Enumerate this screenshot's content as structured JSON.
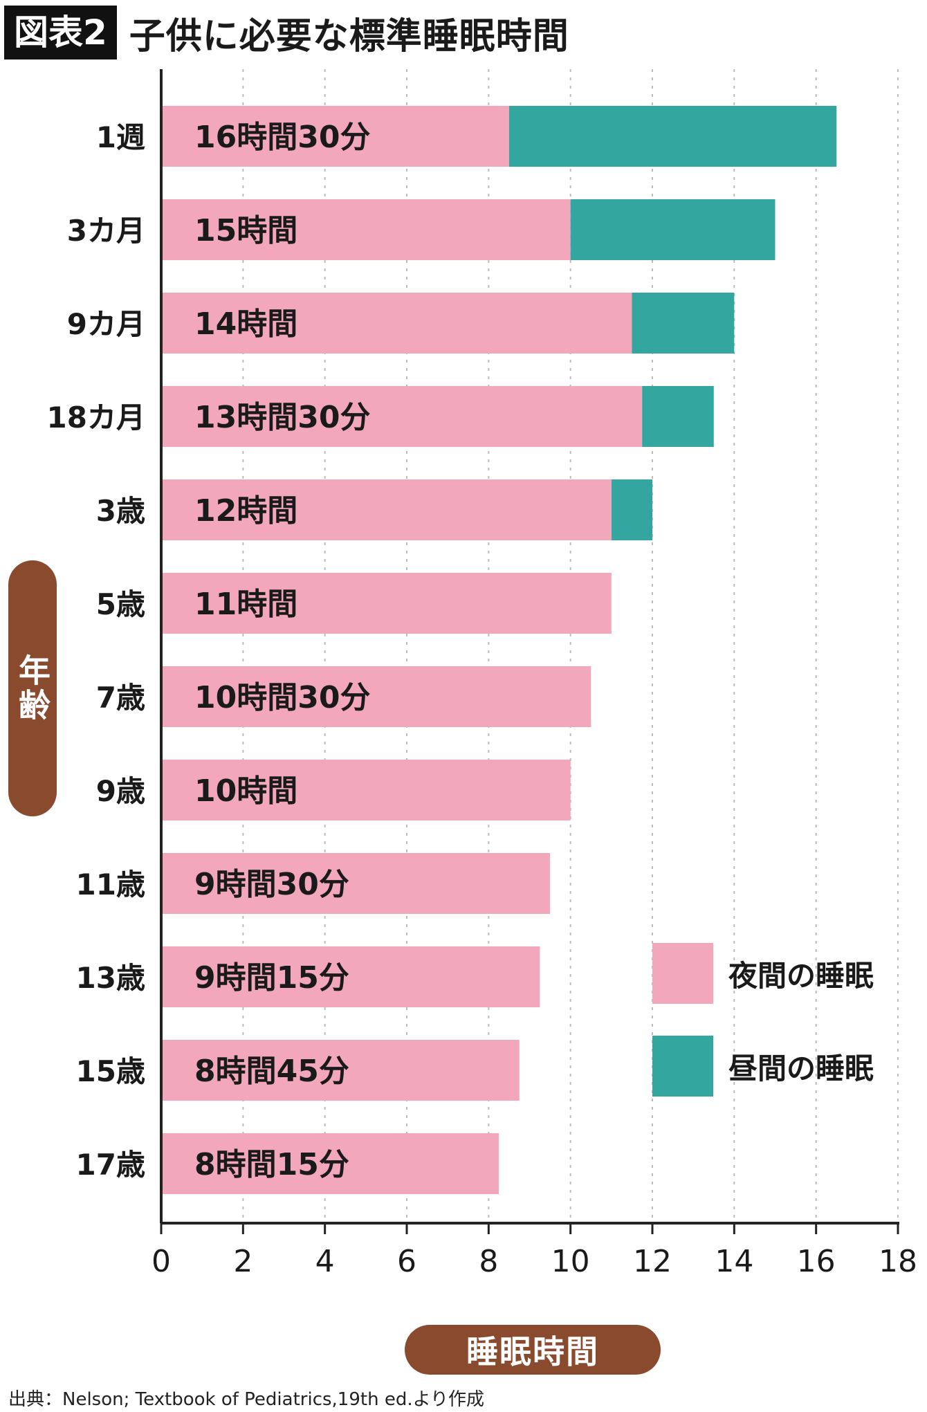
{
  "title": {
    "tag": "図表2",
    "text": "子供に必要な標準睡眠時間"
  },
  "source": "出典：Nelson; Textbook of Pediatrics,19th ed.より作成",
  "colors": {
    "night": "#f2a7bb",
    "day": "#34a6a0",
    "pill": "#8a4a2e",
    "axis": "#222222",
    "grid": "#bbbbbb"
  },
  "chart_data": {
    "type": "bar",
    "orientation": "horizontal",
    "stacked": true,
    "ylabel": "年齢",
    "xlabel": "睡眠時間",
    "xlim": [
      0,
      18
    ],
    "xticks": [
      "0",
      "2",
      "4",
      "6",
      "8",
      "10",
      "12",
      "14",
      "16",
      "18"
    ],
    "grid": "vertical-dashed",
    "legend_position": "right",
    "categories": [
      "1週",
      "3カ月",
      "9カ月",
      "18カ月",
      "3歳",
      "5歳",
      "7歳",
      "9歳",
      "11歳",
      "13歳",
      "15歳",
      "17歳"
    ],
    "series": [
      {
        "name": "夜間の睡眠",
        "color": "#f2a7bb",
        "values": [
          8.5,
          10,
          11.5,
          11.75,
          11,
          11,
          10.5,
          10,
          9.5,
          9.25,
          8.75,
          8.25
        ]
      },
      {
        "name": "昼間の睡眠",
        "color": "#34a6a0",
        "values": [
          8,
          5,
          2.5,
          1.75,
          1,
          0,
          0,
          0,
          0,
          0,
          0,
          0
        ]
      }
    ],
    "bar_labels": [
      "16時間30分",
      "15時間",
      "14時間",
      "13時間30分",
      "12時間",
      "11時間",
      "10時間30分",
      "10時間",
      "9時間30分",
      "9時間15分",
      "8時間45分",
      "8時間15分"
    ]
  }
}
